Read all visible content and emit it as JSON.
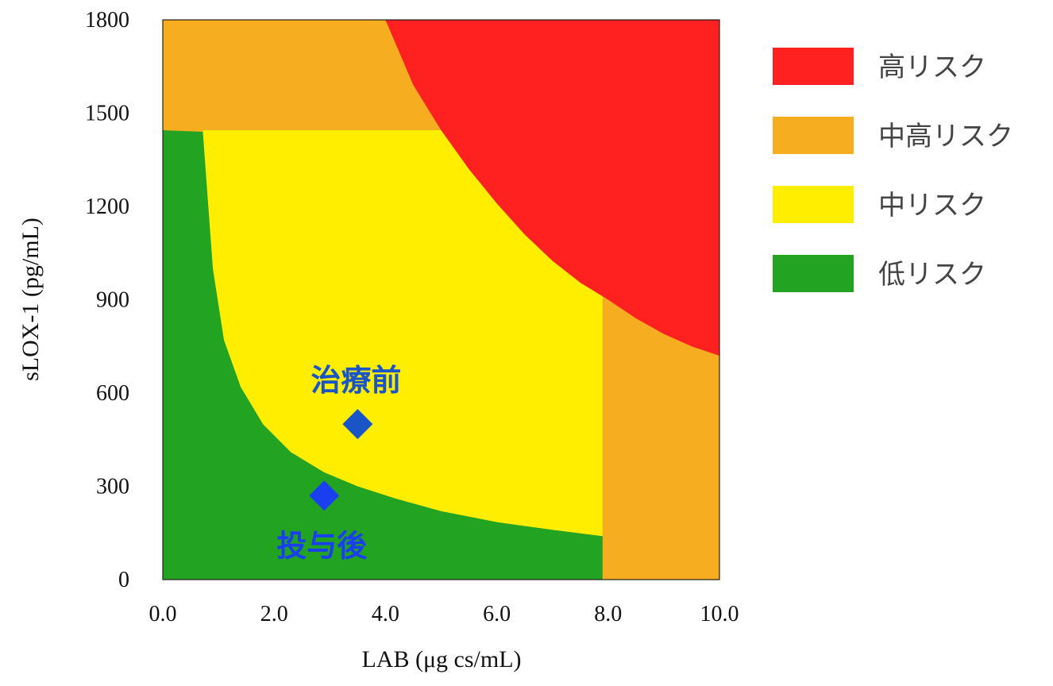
{
  "chart_data": {
    "type": "area",
    "xlabel": "LAB (μg cs/mL)",
    "ylabel": "sLOX-1 (pg/mL)",
    "xlim": [
      0,
      10
    ],
    "ylim": [
      0,
      1800
    ],
    "x_ticks": [
      "0.0",
      "2.0",
      "4.0",
      "6.0",
      "8.0",
      "10.0"
    ],
    "y_ticks": [
      "0",
      "300",
      "600",
      "900",
      "1200",
      "1500",
      "1800"
    ],
    "grid": false,
    "legend_position": "right",
    "regions": [
      {
        "name": "高リスク",
        "color": "#ff2020"
      },
      {
        "name": "中高リスク",
        "color": "#f7ad20"
      },
      {
        "name": "中リスク",
        "color": "#ffee00"
      },
      {
        "name": "低リスク",
        "color": "#22a322"
      }
    ],
    "boundaries": {
      "high_curve": [
        {
          "x": 4.0,
          "y": 1800
        },
        {
          "x": 4.5,
          "y": 1590
        },
        {
          "x": 5.0,
          "y": 1445
        },
        {
          "x": 5.5,
          "y": 1320
        },
        {
          "x": 6.0,
          "y": 1210
        },
        {
          "x": 6.5,
          "y": 1110
        },
        {
          "x": 7.0,
          "y": 1025
        },
        {
          "x": 7.5,
          "y": 955
        },
        {
          "x": 8.0,
          "y": 900
        },
        {
          "x": 8.5,
          "y": 840
        },
        {
          "x": 9.0,
          "y": 790
        },
        {
          "x": 9.5,
          "y": 750
        },
        {
          "x": 10.0,
          "y": 720
        }
      ],
      "low_curve": [
        {
          "x": 0.72,
          "y": 1440
        },
        {
          "x": 0.9,
          "y": 1000
        },
        {
          "x": 1.1,
          "y": 770
        },
        {
          "x": 1.4,
          "y": 620
        },
        {
          "x": 1.8,
          "y": 500
        },
        {
          "x": 2.3,
          "y": 410
        },
        {
          "x": 2.9,
          "y": 345
        },
        {
          "x": 3.5,
          "y": 300
        },
        {
          "x": 4.2,
          "y": 260
        },
        {
          "x": 5.0,
          "y": 220
        },
        {
          "x": 6.0,
          "y": 185
        },
        {
          "x": 7.0,
          "y": 160
        },
        {
          "x": 7.9,
          "y": 140
        }
      ],
      "upper_band_y": 1445,
      "right_band_x": 7.9
    },
    "points": [
      {
        "name": "治療前",
        "x": 3.5,
        "y": 500,
        "color": "#1a55c8",
        "label_position": "above"
      },
      {
        "name": "投与後",
        "x": 2.9,
        "y": 270,
        "color": "#1a3ff0",
        "label_position": "below"
      }
    ]
  }
}
